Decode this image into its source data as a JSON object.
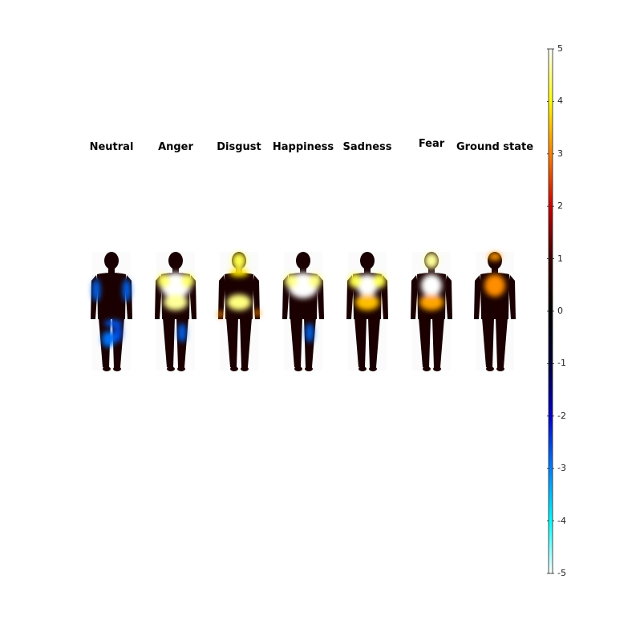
{
  "chart_data": {
    "type": "heatmap",
    "panels": [
      {
        "title": "Neutral",
        "activations": [
          {
            "region": "left-upper-arm",
            "value": -2.8
          },
          {
            "region": "right-upper-arm",
            "value": -2.8
          },
          {
            "region": "waist-band",
            "value": -2.7
          },
          {
            "region": "left-thigh",
            "value": -2.9
          },
          {
            "region": "right-thigh",
            "value": -2.6
          }
        ]
      },
      {
        "title": "Anger",
        "activations": [
          {
            "region": "upper-chest",
            "value": 5
          },
          {
            "region": "shoulders",
            "value": 4.4
          },
          {
            "region": "abdomen",
            "value": 4.6
          },
          {
            "region": "right-thigh",
            "value": -2.8
          }
        ]
      },
      {
        "title": "Disgust",
        "activations": [
          {
            "region": "head",
            "value": 4.3
          },
          {
            "region": "neck",
            "value": 3.8
          },
          {
            "region": "abdomen",
            "value": 4.5
          },
          {
            "region": "hands",
            "value": 3.1
          }
        ]
      },
      {
        "title": "Happiness",
        "activations": [
          {
            "region": "upper-chest",
            "value": 5
          },
          {
            "region": "shoulders",
            "value": 4.5
          },
          {
            "region": "right-thigh",
            "value": -2.8
          }
        ]
      },
      {
        "title": "Sadness",
        "activations": [
          {
            "region": "chest",
            "value": 5
          },
          {
            "region": "shoulders",
            "value": 4.3
          },
          {
            "region": "abdomen",
            "value": 3.5
          }
        ]
      },
      {
        "title": "Fear",
        "activations": [
          {
            "region": "head",
            "value": 4.6
          },
          {
            "region": "chest",
            "value": 5
          },
          {
            "region": "abdomen",
            "value": 3.3
          }
        ]
      },
      {
        "title": "Ground state",
        "activations": [
          {
            "region": "head-top",
            "value": 3.2
          },
          {
            "region": "chest",
            "value": 3.1
          }
        ]
      }
    ],
    "colorbar": {
      "min": -5,
      "max": 5,
      "ticks": [
        "5",
        "4",
        "3",
        "2",
        "1",
        "0",
        "-1",
        "-2",
        "-3",
        "-4",
        "-5"
      ],
      "colormap": [
        "#ffffff",
        "#ffff00",
        "#ff8000",
        "#cc0000",
        "#3a0000",
        "#000000",
        "#00003a",
        "#0000cc",
        "#0080ff",
        "#00ffff",
        "#ffffff"
      ]
    }
  }
}
